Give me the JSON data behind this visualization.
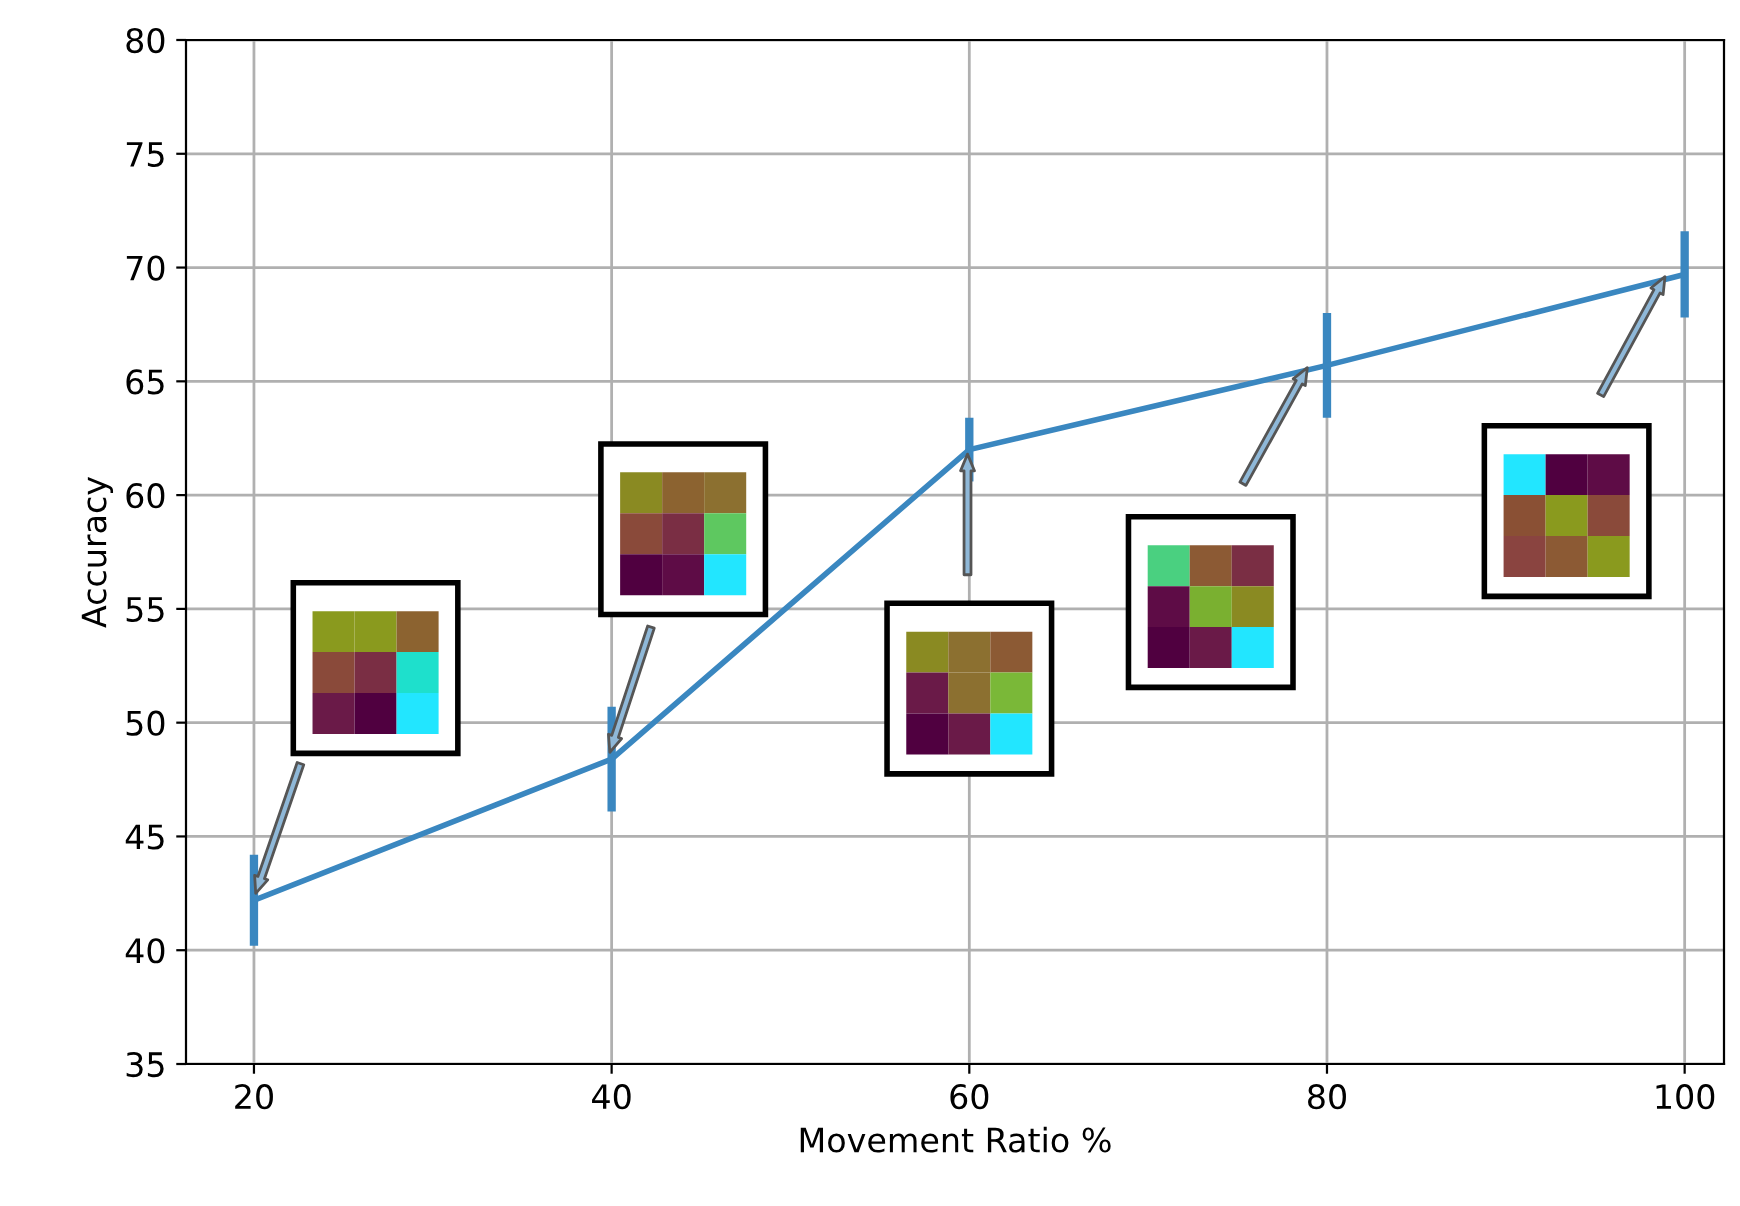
{
  "chart_data": {
    "type": "line",
    "xlabel": "Movement Ratio %",
    "ylabel": "Accuracy",
    "x": [
      20,
      40,
      60,
      80,
      100
    ],
    "series": [
      {
        "color": "#3a87c0",
        "values": [
          42.2,
          48.4,
          62.0,
          65.7,
          69.7
        ],
        "errors": [
          2.0,
          2.3,
          1.4,
          2.3,
          1.9
        ]
      }
    ],
    "xlim": [
      16.2,
      102.2
    ],
    "xticks": [
      20,
      40,
      60,
      80,
      100
    ],
    "ylim": [
      35,
      80
    ],
    "yticks": [
      35,
      40,
      45,
      50,
      55,
      60,
      65,
      70,
      75,
      80
    ],
    "grid": true,
    "legend": false,
    "marker": "none",
    "line_style": "solid"
  }
}
